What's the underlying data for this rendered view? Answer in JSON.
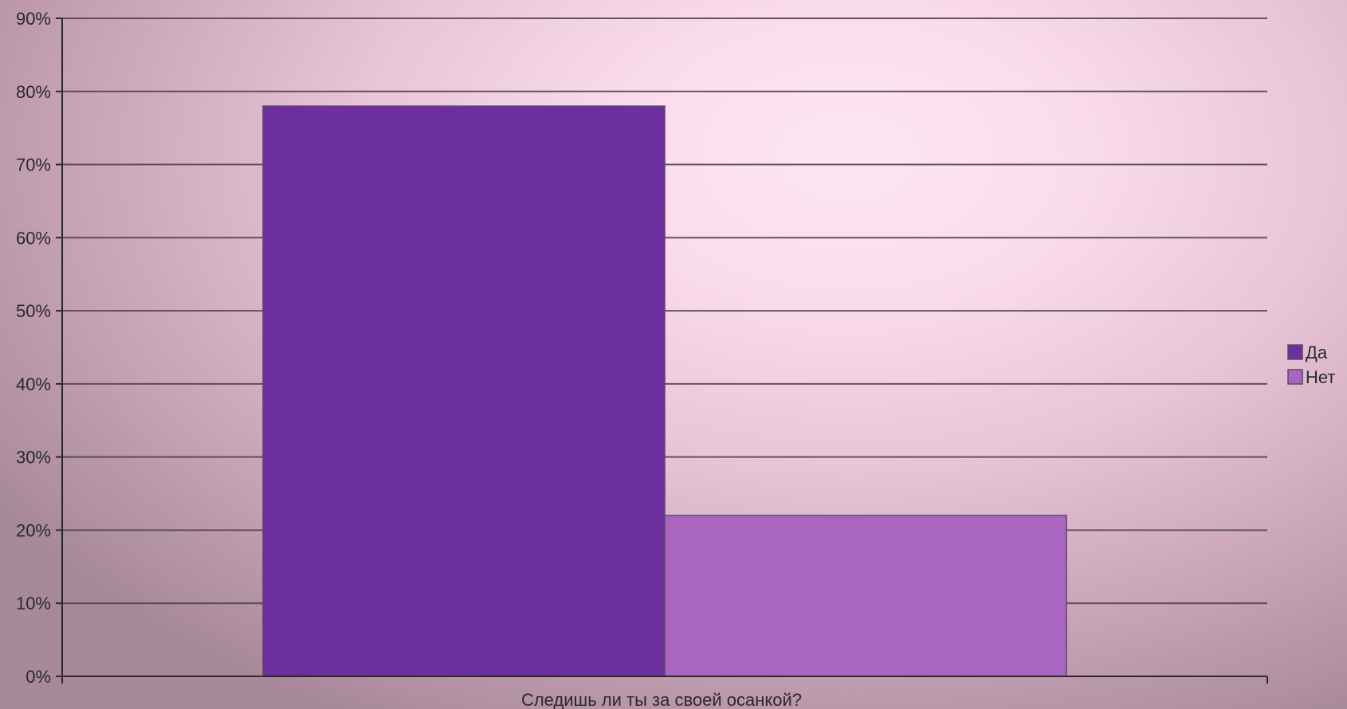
{
  "chart_data": {
    "type": "bar",
    "title": "",
    "xlabel": "",
    "ylabel": "",
    "categories": [
      "Следишь ли ты за своей осанкой?"
    ],
    "series": [
      {
        "name": "Да",
        "values": [
          78
        ],
        "color": "#6e2f9e"
      },
      {
        "name": "Нет",
        "values": [
          22
        ],
        "color": "#a965bf"
      }
    ],
    "ylim": [
      0,
      90
    ],
    "ytick_step": 10,
    "ytick_labels": [
      "0%",
      "10%",
      "20%",
      "30%",
      "40%",
      "50%",
      "60%",
      "70%",
      "80%",
      "90%"
    ],
    "grid": true,
    "legend_position": "right"
  }
}
